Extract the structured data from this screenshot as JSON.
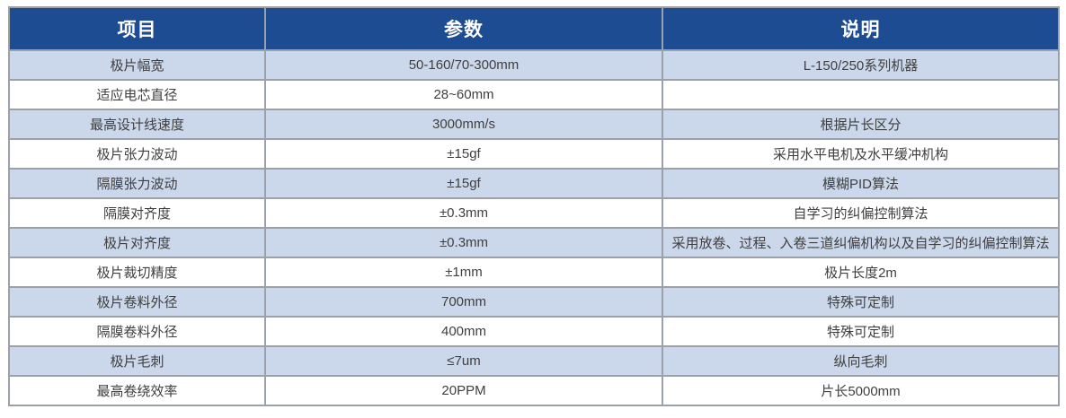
{
  "table": {
    "headers": {
      "item": "项目",
      "param": "参数",
      "desc": "说明"
    },
    "rows": [
      [
        "极片幅宽",
        "50-160/70-300mm",
        "L-150/250系列机器"
      ],
      [
        "适应电芯直径",
        "28~60mm",
        ""
      ],
      [
        "最高设计线速度",
        "3000mm/s",
        "根据片长区分"
      ],
      [
        "极片张力波动",
        "±15gf",
        "采用水平电机及水平缓冲机构"
      ],
      [
        "隔膜张力波动",
        "±15gf",
        "模糊PID算法"
      ],
      [
        "隔膜对齐度",
        "±0.3mm",
        "自学习的纠偏控制算法"
      ],
      [
        "极片对齐度",
        "±0.3mm",
        "采用放卷、过程、入卷三道纠偏机构以及自学习的纠偏控制算法"
      ],
      [
        "极片裁切精度",
        "±1mm",
        "极片长度2m"
      ],
      [
        "极片卷料外径",
        "700mm",
        "特殊可定制"
      ],
      [
        "隔膜卷料外径",
        "400mm",
        "特殊可定制"
      ],
      [
        "极片毛刺",
        "≤7um",
        "纵向毛刺"
      ],
      [
        "最高卷绕效率",
        "20PPM",
        "片长5000mm"
      ]
    ],
    "colors": {
      "header_bg": "#1E4C93",
      "row_alt_bg": "#CBD7EA",
      "row_bg": "#FFFFFF",
      "border": "#9AA1AB",
      "header_text": "#FFFFFF",
      "body_text": "#3F3F3F"
    }
  }
}
